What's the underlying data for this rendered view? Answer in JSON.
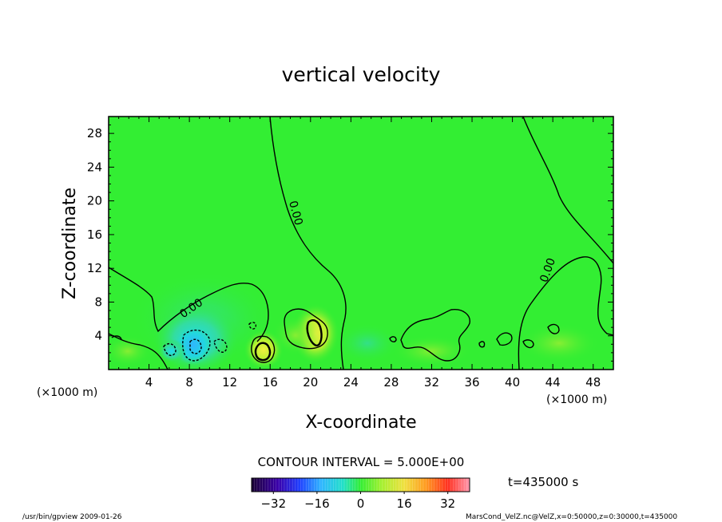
{
  "chart_data": {
    "type": "heatmap",
    "title": "vertical velocity",
    "xlabel": "X-coordinate",
    "ylabel": "Z-coordinate",
    "x_unit": "(×1000 m)",
    "y_unit": "(×1000 m)",
    "xlim": [
      0,
      50
    ],
    "ylim": [
      0,
      30
    ],
    "x_ticks": [
      4,
      8,
      12,
      16,
      20,
      24,
      28,
      32,
      36,
      40,
      44,
      48
    ],
    "y_ticks": [
      4,
      8,
      12,
      16,
      20,
      24,
      28
    ],
    "contour_interval_text": "CONTOUR INTERVAL = 5.000E+00",
    "contour_labels": [
      "0.00",
      "0.00",
      "0.00"
    ],
    "time_text": "t=435000 s",
    "colorbar": {
      "range": [
        -40,
        40
      ],
      "ticks": [
        -32,
        -16,
        0,
        16,
        32
      ]
    },
    "background_color": "#33ee33",
    "features": [
      {
        "kind": "downdraft",
        "x": 9.5,
        "z": 2.5,
        "w": -12
      },
      {
        "kind": "downdraft",
        "x": 6.5,
        "z": 2.0,
        "w": -7
      },
      {
        "kind": "updraft",
        "x": 15.2,
        "z": 2.2,
        "w": 12
      },
      {
        "kind": "updraft",
        "x": 20.5,
        "z": 4.5,
        "w": 10
      },
      {
        "kind": "updraft",
        "x": 17.8,
        "z": 3.5,
        "w": 5
      }
    ]
  },
  "footer": {
    "left": "/usr/bin/gpview   2009-01-26",
    "right": "MarsCond_VelZ.nc@VelZ,x=0:50000,z=0:30000,t=435000"
  }
}
